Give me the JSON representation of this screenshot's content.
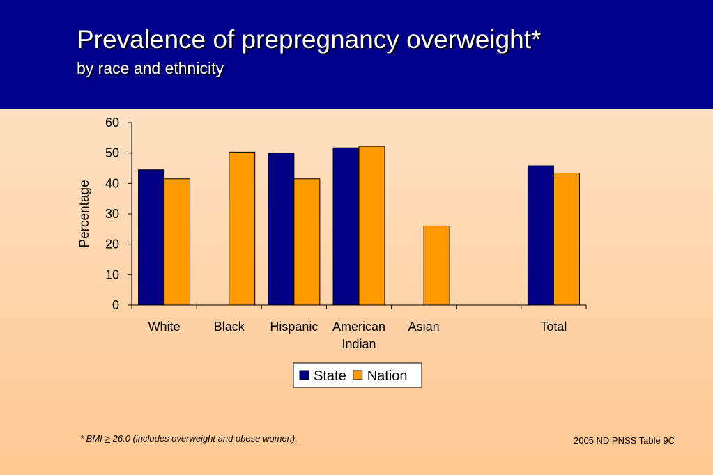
{
  "header": {
    "title": "Prevalence of prepregnancy overweight*",
    "subtitle": "by race and ethnicity"
  },
  "footnote": {
    "prefix": "*  BMI ",
    "symbol": ">",
    "suffix": " 26.0 (includes overweight and obese women)."
  },
  "source": "2005 ND PNSS Table 9C",
  "colors": {
    "header_bg": "#00008b",
    "state": "#000080",
    "nation": "#ff9900"
  },
  "chart_data": {
    "type": "bar",
    "title": "",
    "xlabel": "",
    "ylabel": "Percentage",
    "ylim": [
      0,
      60
    ],
    "yticks": [
      0,
      10,
      20,
      30,
      40,
      50,
      60
    ],
    "categories": [
      [
        "White"
      ],
      [
        "Black"
      ],
      [
        "Hispanic"
      ],
      [
        "American",
        "Indian"
      ],
      [
        "Asian"
      ],
      [
        ""
      ],
      [
        "Total"
      ]
    ],
    "series": [
      {
        "name": "State",
        "color": "#000080",
        "values": [
          44.5,
          null,
          50.0,
          51.7,
          null,
          null,
          45.8
        ]
      },
      {
        "name": "Nation",
        "color": "#ff9900",
        "values": [
          41.5,
          50.3,
          41.5,
          52.2,
          26.0,
          null,
          43.4
        ]
      }
    ],
    "legend": "bottom-center",
    "grid": false
  }
}
